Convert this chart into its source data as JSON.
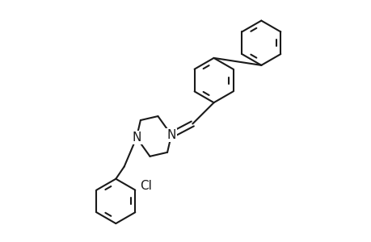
{
  "background_color": "#ffffff",
  "line_color": "#1a1a1a",
  "line_width": 1.5,
  "font_size": 10,
  "figsize": [
    4.6,
    3.0
  ],
  "dpi": 100,
  "xlim": [
    -0.2,
    4.6
  ],
  "ylim": [
    -1.5,
    2.8
  ]
}
